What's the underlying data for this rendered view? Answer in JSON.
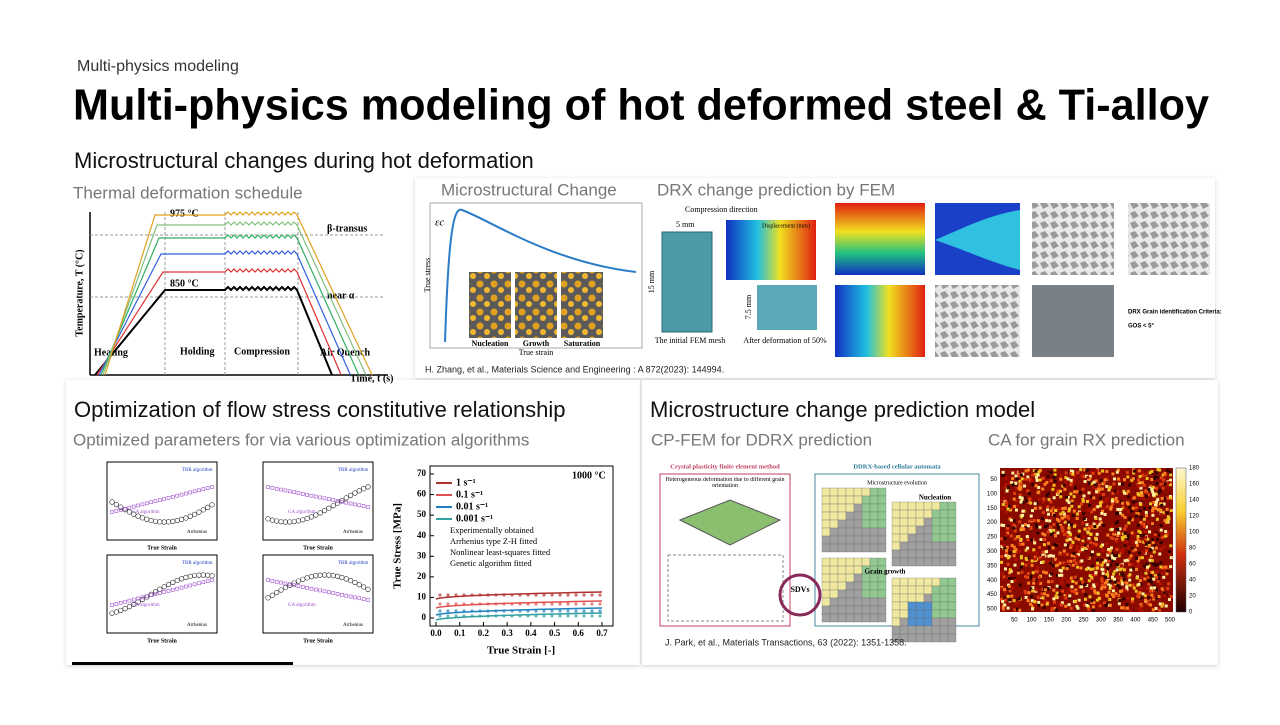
{
  "header": {
    "kicker": "Multi-physics modeling",
    "title": "Multi-physics modeling of hot deformed steel & Ti-alloy"
  },
  "top_section": {
    "heading": "Microstructural changes during hot deformation",
    "thermal": {
      "caption": "Thermal deformation schedule",
      "y_label": "Temperature, T (°C)",
      "x_label": "Time, t (s)",
      "temps": [
        "975 °C",
        "850 °C"
      ],
      "lines": [
        "β-transus",
        "near α"
      ],
      "stages": [
        "Heating",
        "Holding",
        "Compression",
        "Air Quench"
      ]
    },
    "micro": {
      "caption": "Microstructural Change",
      "symbol": "εc",
      "y_label": "True stress",
      "x_label": "True strain",
      "stages": [
        "Nucleation",
        "Growth",
        "Saturation"
      ]
    },
    "fem": {
      "caption": "DRX change prediction by FEM",
      "direction": "Compression direction",
      "width": "5 mm",
      "height": "15 mm",
      "half": "7.5 mm",
      "mesh": "The initial FEM mesh",
      "deformed": "After deformation of 50%",
      "displacement": "Displacement (mm)",
      "criteria": "DRX Grain identification Criteria:",
      "gos": "GOS < 5°"
    },
    "citation": "H. Zhang, et al., Materials Science and Engineering : A 872(2023): 144994."
  },
  "optimization": {
    "heading": "Optimization of flow stress constitutive relationship",
    "subtitle": "Optimized parameters for via various optimization algorithms",
    "param_x_label": "True Strain",
    "algorithms": [
      "TRR algorithm",
      "GA algorithm",
      "Arrhenius"
    ],
    "flow": {
      "temperature": "1000 °C",
      "x_label": "True Strain [-]",
      "y_label": "True Stress [MPa]",
      "legend": [
        "1 s⁻¹",
        "0.1 s⁻¹",
        "0.01 s⁻¹",
        "0.001 s⁻¹",
        "Experimentally obtained",
        "Arrhenius type Z-H fitted",
        "Nonlinear least-squares fitted",
        "Genetic algorithm fitted"
      ],
      "xticks": [
        "0.0",
        "0.1",
        "0.2",
        "0.3",
        "0.4",
        "0.5",
        "0.6",
        "0.7"
      ],
      "yticks": [
        "0",
        "10",
        "20",
        "30",
        "40",
        "50",
        "60",
        "70"
      ]
    }
  },
  "prediction": {
    "heading": "Microstructure change prediction model",
    "cp_fem": "CP-FEM for DDRX prediction",
    "ca": "CA for grain RX prediction",
    "cp_labels": {
      "left_title": "Crystal plasticity finite element method",
      "right_title": "DDRX-based cellular automata",
      "hetero": "Heterogeneous deformation due to different grain orientation",
      "evolution": "Microstructure evolution",
      "nucleation": "Nucleation",
      "growth": "Grain growth",
      "sdv": "SDVs"
    },
    "ca_axis": [
      "50",
      "100",
      "150",
      "200",
      "250",
      "300",
      "350",
      "400",
      "450",
      "500"
    ],
    "colorbar": [
      "0",
      "20",
      "40",
      "60",
      "80",
      "100",
      "120",
      "140",
      "160",
      "180"
    ],
    "citation": "J. Park, et al., Materials Transactions, 63 (2022): 1351-1358."
  }
}
